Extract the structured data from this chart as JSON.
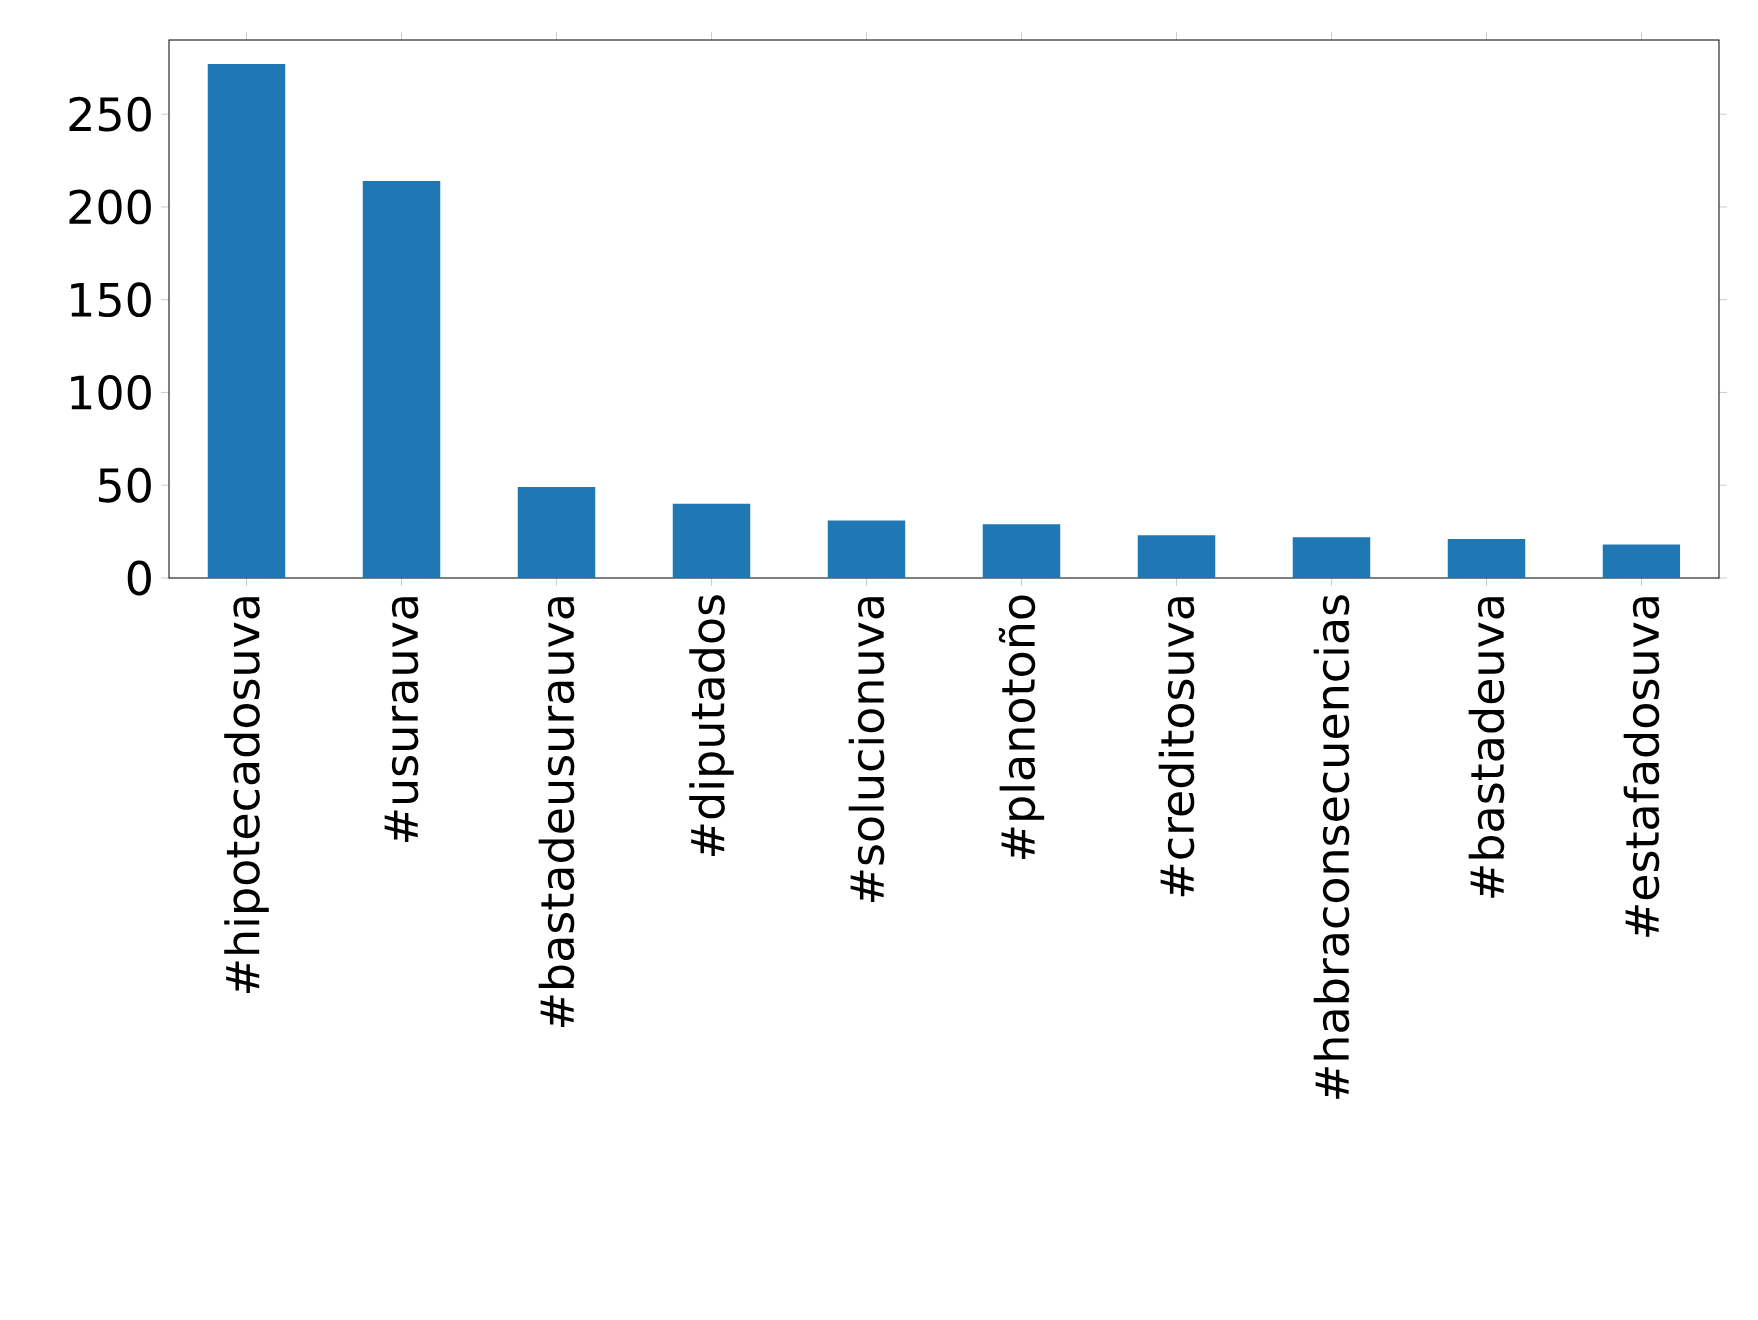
{
  "chart_data": {
    "type": "bar",
    "categories": [
      "#hipotecadosuva",
      "#usurauva",
      "#bastadeusurauva",
      "#diputados",
      "#solucionuva",
      "#planotoño",
      "#creditosuva",
      "#habraconsecuencias",
      "#bastadeuva",
      "#estafadosuva"
    ],
    "values": [
      277,
      214,
      49,
      40,
      31,
      29,
      23,
      22,
      21,
      18
    ],
    "color": "#1f77b4",
    "ylim": [
      0,
      290
    ],
    "yticks": [
      0,
      50,
      100,
      150,
      200,
      250
    ]
  }
}
